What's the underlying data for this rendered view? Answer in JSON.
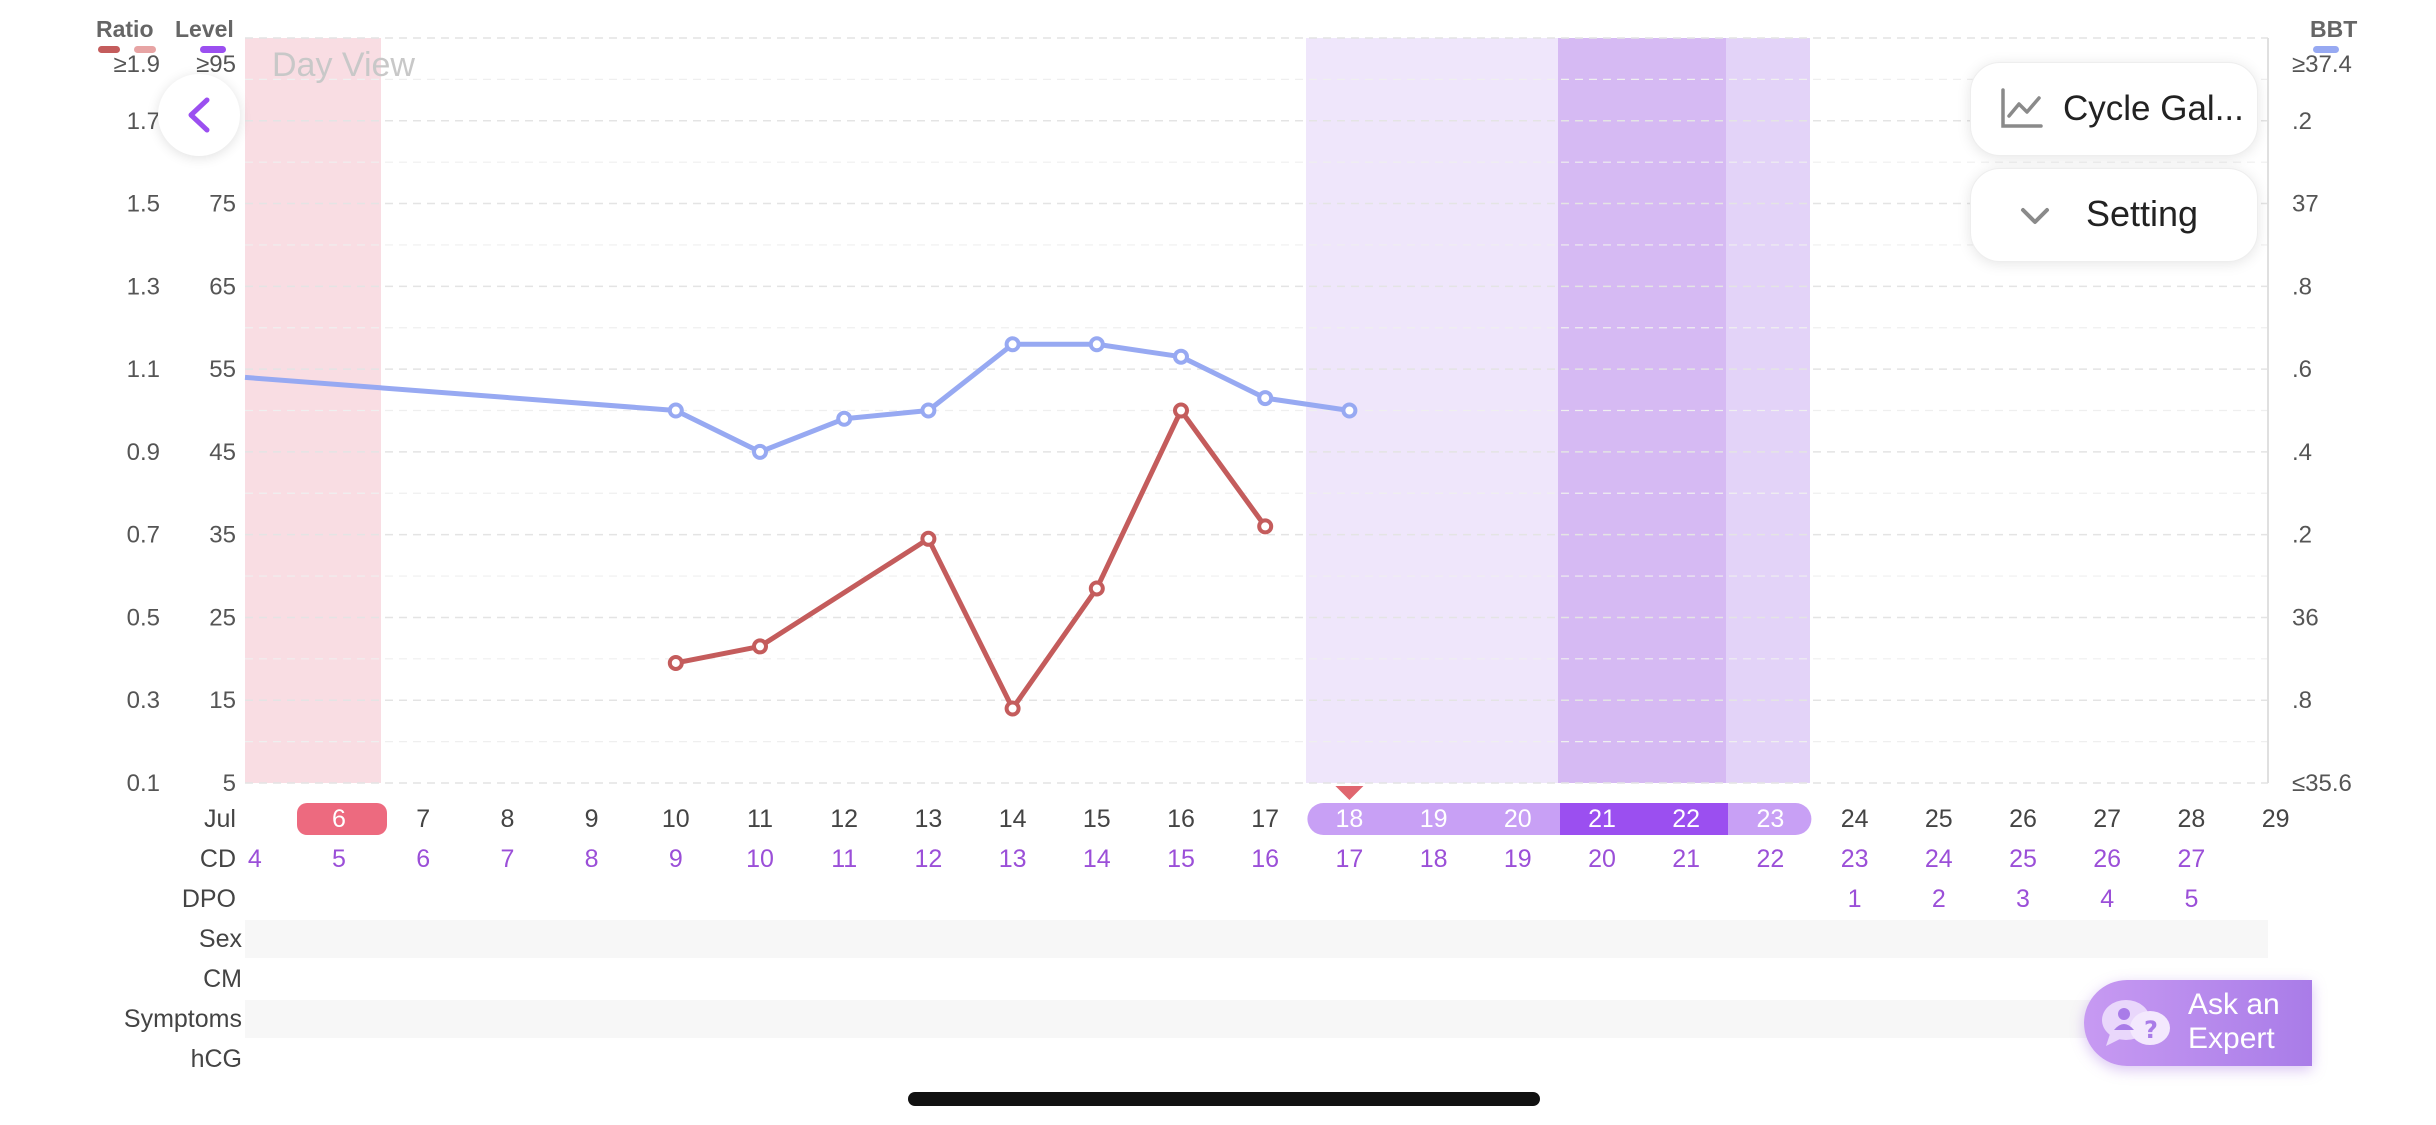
{
  "view_label": "Day View",
  "legend": {
    "ratio_label": "Ratio",
    "level_label": "Level",
    "bbt_label": "BBT"
  },
  "colors": {
    "ratio": "#c45c5c",
    "bbt": "#97a9f2",
    "period": "#f9dde3",
    "fertile_light": "#efe6fb",
    "fertile_mid": "#d6baf3",
    "fertile_dark": "#9b4ff0"
  },
  "left_axis": {
    "ratio_ticks": [
      "≥1.9",
      "1.7",
      "1.5",
      "1.3",
      "1.1",
      "0.9",
      "0.7",
      "0.5",
      "0.3",
      "0.1"
    ],
    "level_ticks": [
      "≥95",
      "",
      "75",
      "65",
      "55",
      "45",
      "35",
      "25",
      "15",
      "5"
    ]
  },
  "right_axis": {
    "ticks": [
      "≥37.4",
      ".2",
      "37",
      ".8",
      ".6",
      ".4",
      ".2",
      "36",
      ".8",
      "≤35.6"
    ]
  },
  "month_label": "Jul",
  "days": [
    "6",
    "7",
    "8",
    "9",
    "10",
    "11",
    "12",
    "13",
    "14",
    "15",
    "16",
    "17",
    "18",
    "19",
    "20",
    "21",
    "22",
    "23",
    "24",
    "25",
    "26",
    "27",
    "28",
    "29"
  ],
  "cd_row": {
    "label": "CD",
    "values": [
      "4",
      "5",
      "6",
      "7",
      "8",
      "9",
      "10",
      "11",
      "12",
      "13",
      "14",
      "15",
      "16",
      "17",
      "18",
      "19",
      "20",
      "21",
      "22",
      "23",
      "24",
      "25",
      "26",
      "27"
    ]
  },
  "dpo_row": {
    "label": "DPO",
    "values": [
      "1",
      "2",
      "3",
      "4",
      "5"
    ]
  },
  "other_rows": [
    "Sex",
    "CM",
    "Symptoms",
    "hCG"
  ],
  "chart_data": {
    "type": "line",
    "x": [
      "10",
      "11",
      "12",
      "13",
      "14",
      "15",
      "16",
      "17",
      "18"
    ],
    "series": [
      {
        "name": "BBT",
        "values": [
          36.5,
          36.4,
          36.48,
          36.5,
          36.66,
          36.66,
          36.63,
          36.53,
          36.5
        ]
      },
      {
        "name": "Ratio",
        "values": [
          0.39,
          0.43,
          null,
          0.69,
          0.28,
          0.57,
          1.0,
          0.72,
          null
        ]
      }
    ],
    "bbt_entry_from_left": 36.58,
    "ylim_ratio": [
      0.1,
      1.9
    ],
    "ylim_bbt": [
      35.6,
      37.4
    ],
    "grid": true
  },
  "buttons": {
    "cycle_label": "Cycle Gal...",
    "setting_label": "Setting",
    "ask_label_1": "Ask an",
    "ask_label_2": "Expert"
  }
}
